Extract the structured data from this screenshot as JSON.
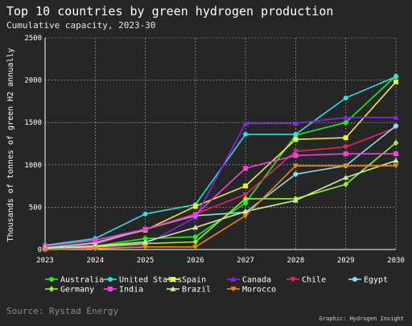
{
  "header": {
    "title": "Top 10 countries by green hydrogen production",
    "subtitle": "Cumulative capacity, 2023-30"
  },
  "footer": {
    "source": "Source: Rystad Energy",
    "credit": "Graphic: Hydrogen Insight"
  },
  "chart_data": {
    "type": "line",
    "title": "Top 10 countries by green hydrogen production",
    "subtitle": "Cumulative capacity, 2023-30",
    "ylabel": "Thousands of tonnes of green H2 annually",
    "xlabel": "",
    "x": [
      "2023",
      "2024",
      "2025",
      "2026",
      "2027",
      "2028",
      "2029",
      "2030"
    ],
    "yticks": [
      0,
      500,
      1000,
      1500,
      2000,
      2500
    ],
    "ylim": [
      0,
      2500
    ],
    "grid": true,
    "legend_position": "bottom",
    "series": [
      {
        "name": "Australia",
        "color": "#22ee22",
        "marker": "circle",
        "values": [
          10,
          40,
          130,
          150,
          550,
          1350,
          1500,
          2050
        ]
      },
      {
        "name": "United States",
        "color": "#33dddd",
        "marker": "circle",
        "values": [
          50,
          130,
          420,
          530,
          1360,
          1360,
          1790,
          2040
        ]
      },
      {
        "name": "Spain",
        "color": "#eeee44",
        "marker": "square",
        "values": [
          10,
          80,
          230,
          510,
          750,
          1300,
          1320,
          1980
        ]
      },
      {
        "name": "Canada",
        "color": "#8822ee",
        "marker": "triangle-up",
        "values": [
          0,
          20,
          60,
          380,
          1490,
          1490,
          1560,
          1560
        ]
      },
      {
        "name": "Chile",
        "color": "#ee2266",
        "marker": "triangle-down",
        "values": [
          20,
          60,
          240,
          420,
          650,
          1160,
          1210,
          1440
        ]
      },
      {
        "name": "Egypt",
        "color": "#88ddee",
        "marker": "circle",
        "values": [
          20,
          80,
          240,
          400,
          440,
          890,
          990,
          1460
        ]
      },
      {
        "name": "Germany",
        "color": "#99ee33",
        "marker": "diamond",
        "values": [
          20,
          30,
          70,
          90,
          600,
          600,
          770,
          1260
        ]
      },
      {
        "name": "India",
        "color": "#ee44dd",
        "marker": "square",
        "values": [
          40,
          110,
          240,
          410,
          960,
          1110,
          1130,
          1130
        ]
      },
      {
        "name": "Brazil",
        "color": "#ccee99",
        "marker": "triangle-up",
        "values": [
          20,
          40,
          90,
          260,
          450,
          580,
          850,
          1050
        ]
      },
      {
        "name": "Morocco",
        "color": "#ee8811",
        "marker": "triangle-down",
        "values": [
          0,
          10,
          30,
          30,
          400,
          990,
          990,
          990
        ]
      }
    ]
  }
}
